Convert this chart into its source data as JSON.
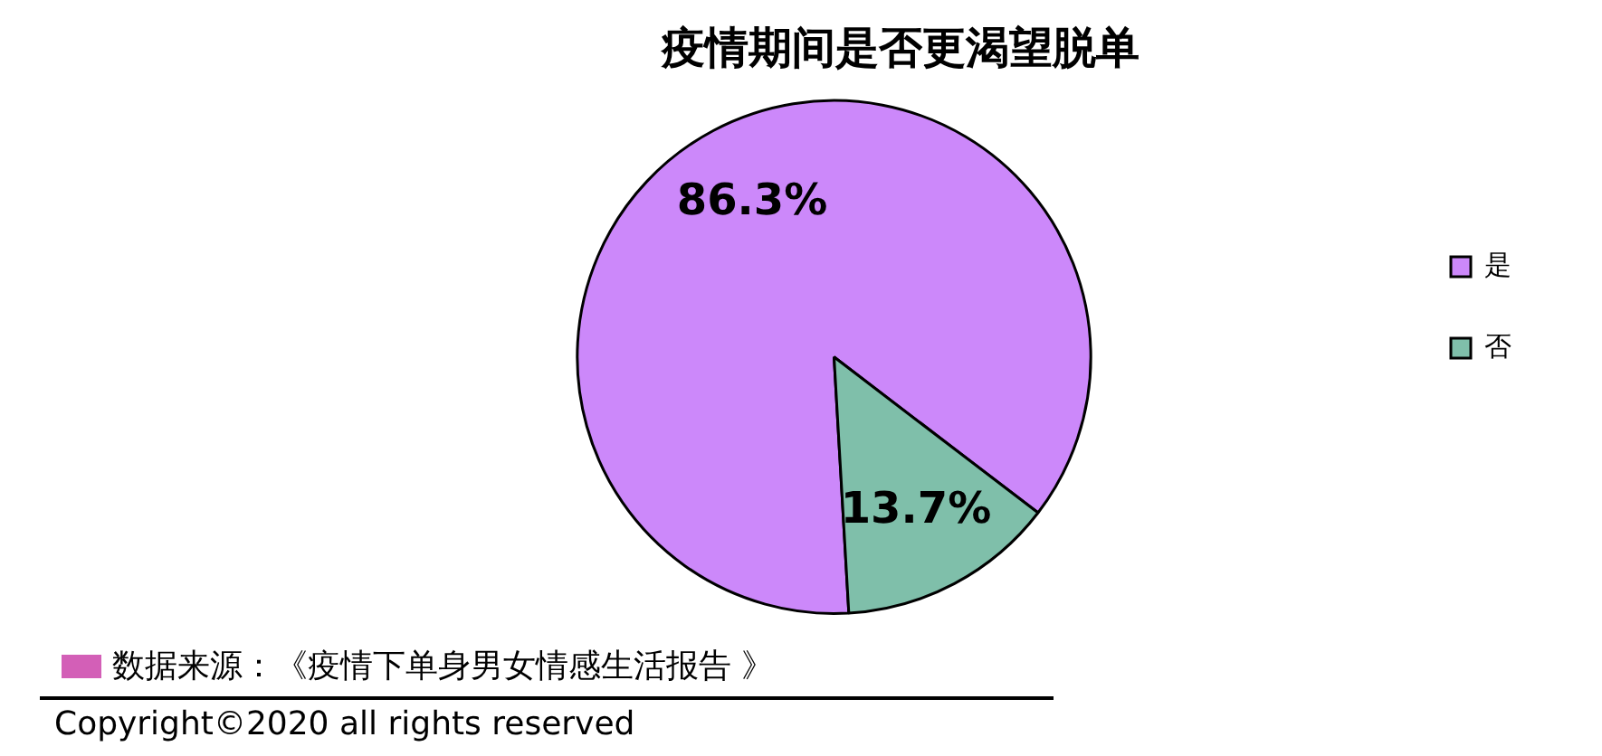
{
  "chart_data": {
    "type": "pie",
    "title": "疫情期间是否更渴望脱单",
    "categories": [
      "是",
      "否"
    ],
    "values": [
      86.3,
      13.7
    ],
    "colors": [
      "#cc88fa",
      "#7fbfaa"
    ],
    "value_labels": [
      "86.3%",
      "13.7%"
    ],
    "legend": "right",
    "annotations": [
      "数据来源：《疫情下单身男女情感生活报告 》",
      "Copyright©2020  all rights reserved"
    ]
  }
}
